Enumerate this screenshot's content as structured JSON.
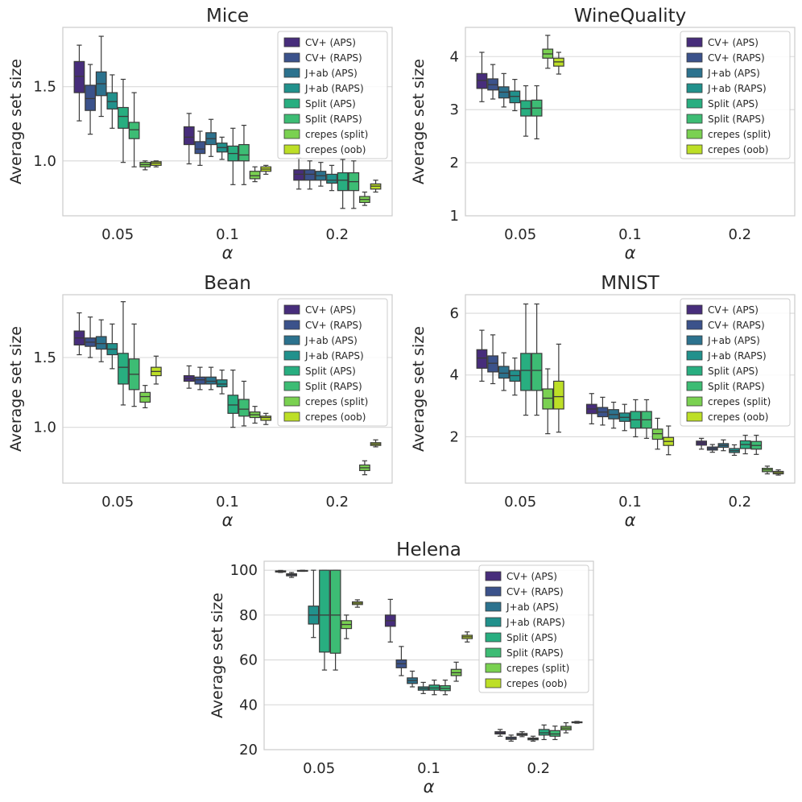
{
  "chart_data": [
    {
      "type": "box",
      "title": "Mice",
      "xlabel": "α",
      "ylabel": "Average set size",
      "categories": [
        "0.05",
        "0.1",
        "0.2"
      ],
      "ylim": [
        0.63,
        1.9
      ],
      "yticks": [
        1.0,
        1.5
      ],
      "yticklabels": [
        "1.0",
        "1.5"
      ],
      "legend": {
        "position": "top-right"
      },
      "series": [
        {
          "name": "CV+ (APS)",
          "color": "#472d7b",
          "boxes": [
            [
              1.27,
              1.46,
              1.57,
              1.67,
              1.78
            ],
            [
              0.98,
              1.11,
              1.16,
              1.23,
              1.32
            ],
            [
              0.81,
              0.87,
              0.91,
              0.94,
              1.02
            ]
          ]
        },
        {
          "name": "CV+ (RAPS)",
          "color": "#3b528b",
          "boxes": [
            [
              1.18,
              1.34,
              1.42,
              1.51,
              1.65
            ],
            [
              0.97,
              1.05,
              1.08,
              1.13,
              1.2
            ],
            [
              0.81,
              0.87,
              0.91,
              0.94,
              1.0
            ]
          ]
        },
        {
          "name": "J+ab (APS)",
          "color": "#2c728e",
          "boxes": [
            [
              1.3,
              1.44,
              1.52,
              1.6,
              1.84
            ],
            [
              1.03,
              1.11,
              1.15,
              1.19,
              1.28
            ],
            [
              0.83,
              0.87,
              0.9,
              0.93,
              0.99
            ]
          ]
        },
        {
          "name": "J+ab (RAPS)",
          "color": "#21918c",
          "boxes": [
            [
              1.22,
              1.35,
              1.4,
              1.46,
              1.58
            ],
            [
              1.01,
              1.06,
              1.09,
              1.12,
              1.16
            ],
            [
              0.8,
              0.85,
              0.87,
              0.91,
              0.97
            ]
          ]
        },
        {
          "name": "Split (APS)",
          "color": "#28ae80",
          "boxes": [
            [
              0.99,
              1.22,
              1.3,
              1.36,
              1.55
            ],
            [
              0.84,
              1.0,
              1.05,
              1.1,
              1.22
            ],
            [
              0.68,
              0.8,
              0.87,
              0.92,
              1.01
            ]
          ]
        },
        {
          "name": "Split (RAPS)",
          "color": "#3dbc74",
          "boxes": [
            [
              0.96,
              1.15,
              1.21,
              1.26,
              1.46
            ],
            [
              0.84,
              1.0,
              1.04,
              1.11,
              1.24
            ],
            [
              0.68,
              0.8,
              0.86,
              0.92,
              1.0
            ]
          ]
        },
        {
          "name": "crepes (split)",
          "color": "#7ad151",
          "boxes": [
            [
              0.94,
              0.96,
              0.975,
              0.99,
              1.0
            ],
            [
              0.86,
              0.88,
              0.9,
              0.93,
              0.96
            ],
            [
              0.7,
              0.72,
              0.74,
              0.76,
              0.79
            ]
          ]
        },
        {
          "name": "crepes (oob)",
          "color": "#bddf26",
          "boxes": [
            [
              0.96,
              0.97,
              0.985,
              0.995,
              1.0
            ],
            [
              0.91,
              0.93,
              0.945,
              0.96,
              0.97
            ],
            [
              0.79,
              0.81,
              0.83,
              0.845,
              0.87
            ]
          ]
        }
      ]
    },
    {
      "type": "box",
      "title": "WineQuality",
      "xlabel": "α",
      "ylabel": "Average set size",
      "categories": [
        "0.05",
        "0.1",
        "0.2"
      ],
      "ylim": [
        1.0,
        4.55
      ],
      "yticks": [
        1,
        2,
        3,
        4
      ],
      "yticklabels": [
        "1",
        "2",
        "3",
        "4"
      ],
      "legend": {
        "position": "top-right"
      },
      "series": [
        {
          "name": "CV+ (APS)",
          "color": "#472d7b",
          "boxes": [
            [
              3.15,
              3.4,
              3.55,
              3.68,
              4.08
            ]
          ]
        },
        {
          "name": "CV+ (RAPS)",
          "color": "#3b528b",
          "boxes": [
            [
              3.2,
              3.37,
              3.47,
              3.58,
              3.85
            ]
          ]
        },
        {
          "name": "J+ab (APS)",
          "color": "#2c728e",
          "boxes": [
            [
              3.05,
              3.22,
              3.33,
              3.43,
              3.68
            ]
          ]
        },
        {
          "name": "J+ab (RAPS)",
          "color": "#21918c",
          "boxes": [
            [
              2.98,
              3.13,
              3.25,
              3.35,
              3.57
            ]
          ]
        },
        {
          "name": "Split (APS)",
          "color": "#28ae80",
          "boxes": [
            [
              2.5,
              2.88,
              3.02,
              3.17,
              3.45
            ]
          ]
        },
        {
          "name": "Split (RAPS)",
          "color": "#3dbc74",
          "boxes": [
            [
              2.45,
              2.88,
              3.03,
              3.18,
              3.45
            ]
          ]
        },
        {
          "name": "crepes (split)",
          "color": "#7ad151",
          "boxes": [
            [
              3.78,
              3.97,
              4.05,
              4.14,
              4.4
            ]
          ]
        },
        {
          "name": "crepes (oob)",
          "color": "#bddf26",
          "boxes": [
            [
              3.67,
              3.82,
              3.9,
              3.97,
              4.08
            ]
          ]
        }
      ]
    },
    {
      "type": "box",
      "title": "Bean",
      "xlabel": "α",
      "ylabel": "Average set size",
      "categories": [
        "0.05",
        "0.1",
        "0.2"
      ],
      "ylim": [
        0.6,
        1.95
      ],
      "yticks": [
        1.0,
        1.5
      ],
      "yticklabels": [
        "1.0",
        "1.5"
      ],
      "legend": {
        "position": "top-right"
      },
      "series": [
        {
          "name": "CV+ (APS)",
          "color": "#472d7b",
          "boxes": [
            [
              1.52,
              1.59,
              1.64,
              1.69,
              1.82
            ],
            [
              1.28,
              1.33,
              1.35,
              1.37,
              1.44
            ]
          ]
        },
        {
          "name": "CV+ (RAPS)",
          "color": "#3b528b",
          "boxes": [
            [
              1.5,
              1.58,
              1.61,
              1.64,
              1.79
            ],
            [
              1.27,
              1.31,
              1.34,
              1.36,
              1.43
            ]
          ]
        },
        {
          "name": "J+ab (APS)",
          "color": "#2c728e",
          "boxes": [
            [
              1.47,
              1.56,
              1.6,
              1.65,
              1.77
            ],
            [
              1.27,
              1.31,
              1.33,
              1.36,
              1.43
            ]
          ]
        },
        {
          "name": "J+ab (RAPS)",
          "color": "#21918c",
          "boxes": [
            [
              1.42,
              1.52,
              1.56,
              1.6,
              1.74
            ],
            [
              1.24,
              1.29,
              1.31,
              1.34,
              1.41
            ]
          ]
        },
        {
          "name": "Split (APS)",
          "color": "#28ae80",
          "boxes": [
            [
              1.16,
              1.31,
              1.43,
              1.53,
              1.9
            ],
            [
              1.0,
              1.1,
              1.16,
              1.23,
              1.41
            ]
          ]
        },
        {
          "name": "Split (RAPS)",
          "color": "#3dbc74",
          "boxes": [
            [
              1.15,
              1.27,
              1.38,
              1.49,
              1.74
            ],
            [
              1.01,
              1.08,
              1.13,
              1.2,
              1.33
            ]
          ]
        },
        {
          "name": "crepes (split)",
          "color": "#7ad151",
          "boxes": [
            [
              1.14,
              1.18,
              1.22,
              1.25,
              1.3
            ],
            [
              1.03,
              1.07,
              1.09,
              1.11,
              1.15
            ],
            [
              0.66,
              0.69,
              0.71,
              0.73,
              0.76
            ]
          ]
        },
        {
          "name": "crepes (oob)",
          "color": "#bddf26",
          "boxes": [
            [
              1.31,
              1.37,
              1.4,
              1.43,
              1.51
            ],
            [
              1.02,
              1.05,
              1.07,
              1.08,
              1.1
            ],
            [
              0.86,
              0.87,
              0.88,
              0.89,
              0.91
            ]
          ]
        }
      ]
    },
    {
      "type": "box",
      "title": "MNIST",
      "xlabel": "α",
      "ylabel": "Average set size",
      "categories": [
        "0.05",
        "0.1",
        "0.2"
      ],
      "ylim": [
        0.5,
        6.6
      ],
      "yticks": [
        2,
        4,
        6
      ],
      "yticklabels": [
        "2",
        "4",
        "6"
      ],
      "legend": {
        "position": "top-right"
      },
      "series": [
        {
          "name": "CV+ (APS)",
          "color": "#472d7b",
          "boxes": [
            [
              3.8,
              4.22,
              4.55,
              4.82,
              5.45
            ],
            [
              2.42,
              2.75,
              2.9,
              3.05,
              3.4
            ],
            [
              1.6,
              1.73,
              1.8,
              1.86,
              1.95
            ]
          ]
        },
        {
          "name": "CV+ (RAPS)",
          "color": "#3b528b",
          "boxes": [
            [
              3.72,
              4.1,
              4.38,
              4.62,
              5.3
            ],
            [
              2.38,
              2.65,
              2.8,
              2.95,
              3.28
            ],
            [
              1.5,
              1.57,
              1.62,
              1.67,
              1.75
            ]
          ]
        },
        {
          "name": "J+ab (APS)",
          "color": "#2c728e",
          "boxes": [
            [
              3.5,
              3.9,
              4.06,
              4.28,
              4.72
            ],
            [
              2.28,
              2.58,
              2.72,
              2.88,
              3.12
            ],
            [
              1.55,
              1.66,
              1.72,
              1.78,
              1.9
            ]
          ]
        },
        {
          "name": "J+ab (RAPS)",
          "color": "#21918c",
          "boxes": [
            [
              3.35,
              3.8,
              3.98,
              4.15,
              4.55
            ],
            [
              2.2,
              2.5,
              2.63,
              2.77,
              3.05
            ],
            [
              1.4,
              1.49,
              1.55,
              1.62,
              1.74
            ]
          ]
        },
        {
          "name": "Split (APS)",
          "color": "#28ae80",
          "boxes": [
            [
              2.7,
              3.5,
              4.15,
              4.7,
              6.3
            ],
            [
              2.0,
              2.28,
              2.55,
              2.82,
              3.2
            ],
            [
              1.45,
              1.62,
              1.75,
              1.87,
              2.05
            ]
          ]
        },
        {
          "name": "Split (RAPS)",
          "color": "#3dbc74",
          "boxes": [
            [
              2.7,
              3.5,
              4.15,
              4.7,
              6.3
            ],
            [
              1.95,
              2.28,
              2.55,
              2.82,
              3.2
            ],
            [
              1.43,
              1.6,
              1.72,
              1.85,
              2.05
            ]
          ]
        },
        {
          "name": "crepes (split)",
          "color": "#7ad151",
          "boxes": [
            [
              2.1,
              2.9,
              3.25,
              3.55,
              4.2
            ],
            [
              1.6,
              1.92,
              2.1,
              2.25,
              2.6
            ],
            [
              0.8,
              0.87,
              0.93,
              0.98,
              1.05
            ]
          ]
        },
        {
          "name": "crepes (oob)",
          "color": "#bddf26",
          "boxes": [
            [
              2.15,
              2.9,
              3.3,
              3.8,
              5.0
            ],
            [
              1.42,
              1.72,
              1.85,
              1.98,
              2.35
            ],
            [
              0.76,
              0.8,
              0.84,
              0.88,
              0.93
            ]
          ]
        }
      ]
    },
    {
      "type": "box",
      "title": "Helena",
      "xlabel": "α",
      "ylabel": "Average set size",
      "categories": [
        "0.05",
        "0.1",
        "0.2"
      ],
      "ylim": [
        20,
        104
      ],
      "yticks": [
        20,
        40,
        60,
        80,
        100
      ],
      "yticklabels": [
        "20",
        "40",
        "60",
        "80",
        "100"
      ],
      "legend": {
        "position": "top-right"
      },
      "series": [
        {
          "name": "CV+ (APS)",
          "color": "#472d7b",
          "boxes": [
            [
              99.0,
              99.2,
              99.5,
              99.7,
              99.9
            ],
            [
              68.0,
              75.0,
              77.5,
              80.0,
              87.0
            ],
            [
              26.0,
              27.0,
              27.5,
              28.0,
              29.0
            ]
          ]
        },
        {
          "name": "CV+ (RAPS)",
          "color": "#3b528b",
          "boxes": [
            [
              96.8,
              97.5,
              98.0,
              98.4,
              99.0
            ],
            [
              53.0,
              56.5,
              58.3,
              60.0,
              66.0
            ],
            [
              23.8,
              24.6,
              25.0,
              25.6,
              26.5
            ]
          ]
        },
        {
          "name": "J+ab (APS)",
          "color": "#2c728e",
          "boxes": [
            [
              99.5,
              99.7,
              99.8,
              99.9,
              100.0
            ],
            [
              48.0,
              49.5,
              50.8,
              52.0,
              55.0
            ],
            [
              25.8,
              26.4,
              26.8,
              27.2,
              28.0
            ]
          ]
        },
        {
          "name": "J+ab (RAPS)",
          "color": "#21918c",
          "boxes": [
            [
              70.0,
              76.0,
              80.0,
              84.0,
              100.0
            ],
            [
              45.0,
              46.5,
              47.3,
              48.0,
              50.0
            ],
            [
              23.8,
              24.4,
              24.8,
              25.2,
              26.0
            ]
          ]
        },
        {
          "name": "Split (APS)",
          "color": "#28ae80",
          "boxes": [
            [
              55.5,
              63.5,
              80.0,
              100.0,
              100.0
            ],
            [
              44.5,
              46.5,
              47.5,
              48.8,
              51.0
            ],
            [
              24.5,
              26.5,
              27.5,
              29.0,
              31.0
            ]
          ]
        },
        {
          "name": "Split (RAPS)",
          "color": "#3dbc74",
          "boxes": [
            [
              55.5,
              63.0,
              80.0,
              100.0,
              100.0
            ],
            [
              44.5,
              46.3,
              47.3,
              48.5,
              51.0
            ],
            [
              24.5,
              26.0,
              27.0,
              28.5,
              30.5
            ]
          ]
        },
        {
          "name": "crepes (split)",
          "color": "#7ad151",
          "boxes": [
            [
              69.5,
              74.0,
              75.8,
              77.5,
              80.0
            ],
            [
              50.5,
              53.0,
              54.3,
              55.8,
              59.0
            ],
            [
              27.5,
              28.8,
              29.6,
              30.4,
              32.0
            ]
          ]
        },
        {
          "name": "crepes (oob)",
          "color": "#bddf26",
          "boxes": [
            [
              83.5,
              84.7,
              85.3,
              85.9,
              86.8
            ],
            [
              68.0,
              69.5,
              70.3,
              71.0,
              72.5
            ],
            [
              31.8,
              32.0,
              32.2,
              32.4,
              32.6
            ]
          ]
        }
      ]
    }
  ]
}
